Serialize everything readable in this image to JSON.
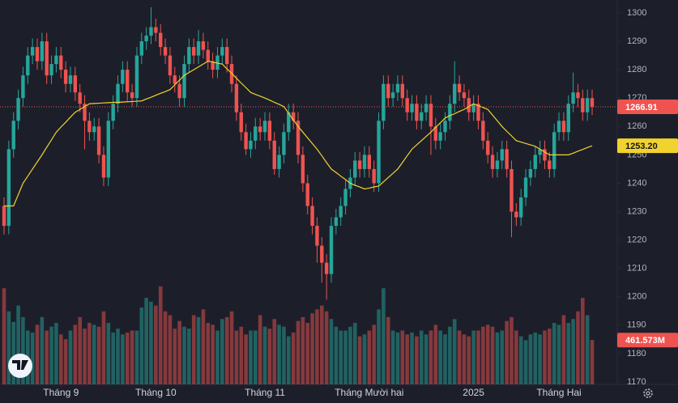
{
  "chart_data": {
    "type": "candlestick",
    "up_color": "#26a69a",
    "down_color": "#ef5350",
    "ylim": [
      1169.14,
      1304.56
    ],
    "yticks": [
      1170,
      1180,
      1190,
      1200,
      1210,
      1220,
      1230,
      1240,
      1250,
      1260,
      1270,
      1280,
      1290,
      1300
    ],
    "xticks": [
      {
        "value": 12,
        "label": "Tháng 9"
      },
      {
        "value": 32,
        "label": "Tháng 10"
      },
      {
        "value": 55,
        "label": "Tháng 11"
      },
      {
        "value": 77,
        "label": "Tháng Mười hai"
      },
      {
        "value": 99,
        "label": "2025"
      },
      {
        "value": 117,
        "label": "Tháng Hai"
      }
    ],
    "open": [
      1232,
      1225,
      1252,
      1262,
      1270,
      1278,
      1285,
      1288,
      1283,
      1290,
      1278,
      1282,
      1285,
      1280,
      1275,
      1278,
      1272,
      1268,
      1262,
      1258,
      1260,
      1250,
      1242,
      1262,
      1268,
      1275,
      1280,
      1272,
      1270,
      1285,
      1290,
      1292,
      1295,
      1293,
      1288,
      1285,
      1278,
      1275,
      1270,
      1282,
      1288,
      1285,
      1290,
      1287,
      1283,
      1280,
      1285,
      1288,
      1282,
      1275,
      1265,
      1258,
      1252,
      1255,
      1260,
      1258,
      1262,
      1255,
      1245,
      1250,
      1258,
      1265,
      1262,
      1250,
      1240,
      1232,
      1225,
      1218,
      1212,
      1208,
      1225,
      1228,
      1232,
      1238,
      1242,
      1248,
      1245,
      1250,
      1245,
      1240,
      1262,
      1275,
      1270,
      1272,
      1275,
      1270,
      1265,
      1268,
      1262,
      1265,
      1268,
      1260,
      1255,
      1258,
      1262,
      1268,
      1275,
      1272,
      1270,
      1265,
      1268,
      1262,
      1255,
      1250,
      1245,
      1248,
      1252,
      1245,
      1230,
      1228,
      1235,
      1242,
      1245,
      1250,
      1252,
      1248,
      1245,
      1258,
      1262,
      1258,
      1268,
      1272,
      1270,
      1265,
      1270
    ],
    "high": [
      1235,
      1255,
      1265,
      1273,
      1281,
      1288,
      1291,
      1291,
      1293,
      1293,
      1285,
      1288,
      1288,
      1283,
      1281,
      1281,
      1275,
      1271,
      1265,
      1263,
      1263,
      1253,
      1265,
      1271,
      1278,
      1283,
      1283,
      1275,
      1288,
      1293,
      1295,
      1302,
      1298,
      1296,
      1291,
      1288,
      1281,
      1278,
      1285,
      1291,
      1291,
      1294,
      1293,
      1290,
      1286,
      1288,
      1291,
      1291,
      1285,
      1278,
      1268,
      1261,
      1258,
      1263,
      1263,
      1265,
      1265,
      1258,
      1253,
      1261,
      1268,
      1268,
      1265,
      1253,
      1243,
      1235,
      1228,
      1221,
      1215,
      1228,
      1231,
      1235,
      1241,
      1245,
      1251,
      1251,
      1253,
      1253,
      1248,
      1265,
      1278,
      1278,
      1275,
      1278,
      1278,
      1273,
      1271,
      1271,
      1268,
      1271,
      1271,
      1263,
      1261,
      1265,
      1271,
      1283,
      1278,
      1275,
      1273,
      1271,
      1271,
      1265,
      1258,
      1253,
      1251,
      1255,
      1255,
      1248,
      1233,
      1238,
      1245,
      1248,
      1253,
      1255,
      1255,
      1251,
      1261,
      1265,
      1265,
      1271,
      1279,
      1275,
      1273,
      1273,
      1273
    ],
    "low": [
      1222,
      1222,
      1249,
      1259,
      1267,
      1275,
      1282,
      1280,
      1280,
      1275,
      1275,
      1279,
      1277,
      1272,
      1272,
      1269,
      1265,
      1252,
      1255,
      1255,
      1247,
      1239,
      1239,
      1259,
      1265,
      1272,
      1269,
      1267,
      1267,
      1282,
      1287,
      1289,
      1290,
      1285,
      1282,
      1275,
      1272,
      1267,
      1267,
      1279,
      1282,
      1282,
      1284,
      1280,
      1277,
      1277,
      1282,
      1279,
      1272,
      1262,
      1255,
      1250,
      1249,
      1252,
      1255,
      1255,
      1252,
      1243,
      1242,
      1247,
      1255,
      1259,
      1247,
      1237,
      1229,
      1222,
      1212,
      1205,
      1199,
      1205,
      1222,
      1225,
      1229,
      1235,
      1239,
      1242,
      1242,
      1242,
      1237,
      1237,
      1259,
      1267,
      1267,
      1269,
      1267,
      1262,
      1262,
      1259,
      1259,
      1262,
      1250,
      1252,
      1252,
      1255,
      1259,
      1265,
      1269,
      1267,
      1262,
      1262,
      1259,
      1252,
      1247,
      1242,
      1242,
      1245,
      1242,
      1221,
      1225,
      1225,
      1232,
      1239,
      1242,
      1247,
      1245,
      1242,
      1242,
      1255,
      1255,
      1255,
      1265,
      1267,
      1262,
      1262,
      1264
    ],
    "close": [
      1225,
      1252,
      1262,
      1270,
      1278,
      1285,
      1288,
      1283,
      1290,
      1278,
      1282,
      1285,
      1280,
      1275,
      1278,
      1272,
      1268,
      1262,
      1258,
      1260,
      1250,
      1242,
      1262,
      1268,
      1275,
      1280,
      1272,
      1270,
      1285,
      1290,
      1292,
      1295,
      1293,
      1288,
      1285,
      1278,
      1275,
      1270,
      1282,
      1288,
      1285,
      1290,
      1287,
      1283,
      1280,
      1285,
      1288,
      1282,
      1275,
      1265,
      1258,
      1252,
      1255,
      1260,
      1258,
      1262,
      1255,
      1245,
      1250,
      1258,
      1265,
      1262,
      1250,
      1240,
      1232,
      1225,
      1218,
      1212,
      1208,
      1225,
      1228,
      1232,
      1238,
      1242,
      1248,
      1245,
      1250,
      1245,
      1240,
      1262,
      1275,
      1270,
      1272,
      1275,
      1270,
      1265,
      1268,
      1262,
      1265,
      1268,
      1260,
      1255,
      1258,
      1262,
      1268,
      1275,
      1272,
      1270,
      1265,
      1268,
      1262,
      1255,
      1250,
      1245,
      1248,
      1252,
      1245,
      1230,
      1228,
      1235,
      1242,
      1245,
      1250,
      1252,
      1248,
      1245,
      1258,
      1262,
      1258,
      1268,
      1272,
      1270,
      1265,
      1270,
      1266.91
    ],
    "ma": {
      "color": "#f2d22e",
      "last_label": "1253.20",
      "values": [
        1232,
        1232,
        1232,
        1236,
        1240,
        1242.5,
        1245,
        1247.5,
        1250,
        1252.7,
        1255.3,
        1258,
        1259.8,
        1261.5,
        1263.3,
        1265,
        1266,
        1267,
        1268,
        1268.1,
        1268.2,
        1268.3,
        1268.4,
        1268.5,
        1268.5,
        1268.6,
        1268.7,
        1268.8,
        1268.9,
        1269,
        1269.7,
        1270.3,
        1271,
        1271.7,
        1272.3,
        1273,
        1274.7,
        1276.3,
        1278,
        1279,
        1280,
        1281,
        1282,
        1283,
        1282.7,
        1282.3,
        1282,
        1280.3,
        1278.7,
        1277,
        1275.3,
        1273.7,
        1272,
        1271.3,
        1270.7,
        1270,
        1269.3,
        1268.5,
        1267.8,
        1267,
        1264.7,
        1262.3,
        1260,
        1258,
        1256,
        1254,
        1252,
        1249.7,
        1247.3,
        1245,
        1243.8,
        1242.5,
        1241.3,
        1240,
        1239.3,
        1238.7,
        1238,
        1238.3,
        1238.7,
        1239,
        1240.5,
        1242,
        1243.5,
        1245,
        1247.3,
        1249.7,
        1252,
        1253.5,
        1255,
        1256.5,
        1258,
        1259.7,
        1261.3,
        1263,
        1263.8,
        1264.5,
        1265.3,
        1266,
        1267,
        1268,
        1267.3,
        1266.7,
        1266,
        1264,
        1262,
        1260,
        1258.3,
        1256.7,
        1255,
        1254.5,
        1254,
        1253.5,
        1253,
        1252,
        1251,
        1250,
        1250,
        1250,
        1250,
        1250,
        1250.6,
        1251.3,
        1251.9,
        1252.6,
        1253.2
      ]
    },
    "volume": {
      "ylim": [
        0,
        4000
      ],
      "last_label": "461.573M",
      "values": [
        1000,
        760,
        650,
        820,
        700,
        560,
        540,
        620,
        700,
        560,
        600,
        640,
        520,
        470,
        560,
        620,
        700,
        580,
        640,
        620,
        600,
        760,
        640,
        540,
        580,
        520,
        540,
        560,
        560,
        800,
        900,
        860,
        820,
        1020,
        760,
        720,
        580,
        660,
        600,
        580,
        720,
        700,
        780,
        640,
        620,
        560,
        680,
        700,
        760,
        560,
        600,
        520,
        560,
        560,
        720,
        600,
        580,
        680,
        620,
        600,
        500,
        540,
        660,
        700,
        640,
        740,
        780,
        820,
        760,
        680,
        600,
        560,
        560,
        600,
        640,
        500,
        520,
        560,
        620,
        780,
        1000,
        700,
        560,
        540,
        560,
        520,
        540,
        500,
        560,
        520,
        560,
        620,
        560,
        520,
        600,
        680,
        560,
        520,
        500,
        560,
        560,
        600,
        620,
        600,
        540,
        560,
        660,
        700,
        560,
        500,
        460,
        520,
        540,
        520,
        560,
        580,
        640,
        620,
        720,
        640,
        680,
        760,
        900,
        720,
        461.573
      ]
    }
  }
}
